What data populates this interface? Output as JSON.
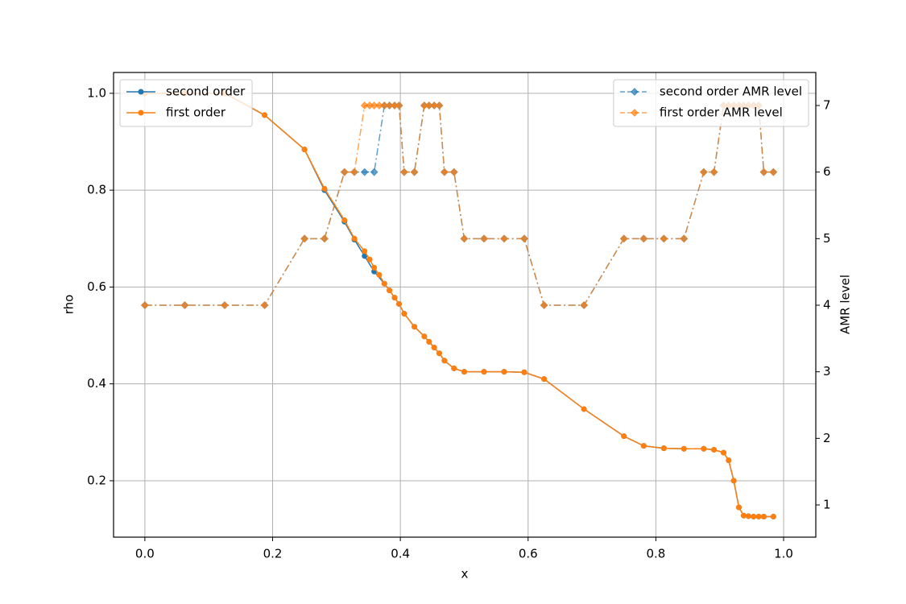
{
  "chart_data": {
    "type": "line",
    "xlabel": "x",
    "ylabel": "rho",
    "y2label": "AMR level",
    "xlim": [
      -0.049,
      1.0504
    ],
    "ylim": [
      0.0835,
      1.043
    ],
    "y2lim": [
      0.516,
      7.496
    ],
    "xticks": [
      {
        "value": 0,
        "label": "0.0"
      },
      0.2,
      0.4,
      0.6,
      0.8,
      {
        "value": 1,
        "label": "1.0"
      }
    ],
    "yticks": [
      0.2,
      0.4,
      0.6,
      0.8,
      {
        "value": 1,
        "label": "1.0"
      }
    ],
    "y2ticks": [
      1,
      2,
      3,
      4,
      5,
      6,
      7
    ],
    "grid": true,
    "legend_loc": "upper left",
    "legend2_loc": "upper right",
    "series": [
      {
        "name": "second order",
        "color": "#1f77b4",
        "axis": "y",
        "x": [
          0,
          0.0625,
          0.125,
          0.1875,
          0.25,
          0.28125,
          0.3125,
          0.328,
          0.344,
          0.359,
          0.375,
          0.383,
          0.391,
          0.398,
          0.406,
          0.422,
          0.4375,
          0.445,
          0.453,
          0.461,
          0.469,
          0.484,
          0.5,
          0.531,
          0.5625,
          0.594,
          0.625,
          0.6875,
          0.75,
          0.781,
          0.8125,
          0.844,
          0.875,
          0.891,
          0.906,
          0.914,
          0.922,
          0.93,
          0.9375,
          0.945,
          0.953,
          0.961,
          0.969,
          0.984
        ],
        "values": [
          1.0,
          1.0,
          1.0,
          0.955,
          0.884,
          0.8,
          0.735,
          0.698,
          0.664,
          0.632,
          0.607,
          0.593,
          0.578,
          0.565,
          0.545,
          0.518,
          0.498,
          0.487,
          0.475,
          0.463,
          0.448,
          0.432,
          0.425,
          0.425,
          0.425,
          0.424,
          0.41,
          0.348,
          0.292,
          0.272,
          0.267,
          0.266,
          0.266,
          0.264,
          0.258,
          0.242,
          0.2,
          0.145,
          0.128,
          0.127,
          0.126,
          0.126,
          0.126,
          0.126
        ]
      },
      {
        "name": "first order",
        "color": "#ff7f0e",
        "axis": "y",
        "x": [
          0,
          0.0625,
          0.125,
          0.1875,
          0.25,
          0.28125,
          0.3125,
          0.328,
          0.344,
          0.352,
          0.359,
          0.367,
          0.375,
          0.383,
          0.391,
          0.398,
          0.406,
          0.422,
          0.4375,
          0.445,
          0.453,
          0.461,
          0.469,
          0.484,
          0.5,
          0.531,
          0.5625,
          0.594,
          0.625,
          0.6875,
          0.75,
          0.781,
          0.8125,
          0.844,
          0.875,
          0.891,
          0.906,
          0.914,
          0.922,
          0.93,
          0.9375,
          0.945,
          0.953,
          0.961,
          0.969,
          0.984
        ],
        "values": [
          1.0,
          1.0,
          1.0,
          0.955,
          0.884,
          0.803,
          0.738,
          0.7,
          0.674,
          0.657,
          0.64,
          0.625,
          0.607,
          0.593,
          0.578,
          0.565,
          0.545,
          0.518,
          0.498,
          0.487,
          0.475,
          0.463,
          0.448,
          0.432,
          0.425,
          0.425,
          0.425,
          0.424,
          0.41,
          0.348,
          0.292,
          0.272,
          0.267,
          0.266,
          0.266,
          0.264,
          0.258,
          0.242,
          0.2,
          0.145,
          0.128,
          0.127,
          0.126,
          0.126,
          0.126,
          0.126
        ]
      },
      {
        "name": "second order AMR level",
        "color": "#1f77b4",
        "axis": "y2",
        "x": [
          0,
          0.0625,
          0.125,
          0.1875,
          0.25,
          0.28125,
          0.3125,
          0.328,
          0.344,
          0.359,
          0.375,
          0.383,
          0.391,
          0.398,
          0.406,
          0.422,
          0.4375,
          0.445,
          0.453,
          0.461,
          0.469,
          0.484,
          0.5,
          0.531,
          0.5625,
          0.594,
          0.625,
          0.6875,
          0.75,
          0.781,
          0.8125,
          0.844,
          0.875,
          0.891,
          0.906,
          0.914,
          0.922,
          0.93,
          0.9375,
          0.945,
          0.953,
          0.961,
          0.969,
          0.984
        ],
        "values": [
          4,
          4,
          4,
          4,
          5,
          5,
          6,
          6,
          6,
          6,
          7,
          7,
          7,
          7,
          6,
          6,
          7,
          7,
          7,
          7,
          6,
          6,
          5,
          5,
          5,
          5,
          4,
          4,
          5,
          5,
          5,
          5,
          6,
          6,
          7,
          7,
          7,
          7,
          7,
          7,
          7,
          7,
          6,
          6
        ]
      },
      {
        "name": "first order AMR level",
        "color": "#ff7f0e",
        "axis": "y2",
        "x": [
          0,
          0.0625,
          0.125,
          0.1875,
          0.25,
          0.28125,
          0.3125,
          0.328,
          0.344,
          0.352,
          0.359,
          0.367,
          0.375,
          0.383,
          0.391,
          0.398,
          0.406,
          0.422,
          0.4375,
          0.445,
          0.453,
          0.461,
          0.469,
          0.484,
          0.5,
          0.531,
          0.5625,
          0.594,
          0.625,
          0.6875,
          0.75,
          0.781,
          0.8125,
          0.844,
          0.875,
          0.891,
          0.906,
          0.914,
          0.922,
          0.93,
          0.9375,
          0.945,
          0.953,
          0.961,
          0.969,
          0.984
        ],
        "values": [
          4,
          4,
          4,
          4,
          5,
          5,
          6,
          6,
          7,
          7,
          7,
          7,
          7,
          7,
          7,
          7,
          6,
          6,
          7,
          7,
          7,
          7,
          6,
          6,
          5,
          5,
          5,
          5,
          4,
          4,
          5,
          5,
          5,
          5,
          6,
          6,
          7,
          7,
          7,
          7,
          7,
          7,
          7,
          7,
          6,
          6
        ]
      }
    ]
  }
}
